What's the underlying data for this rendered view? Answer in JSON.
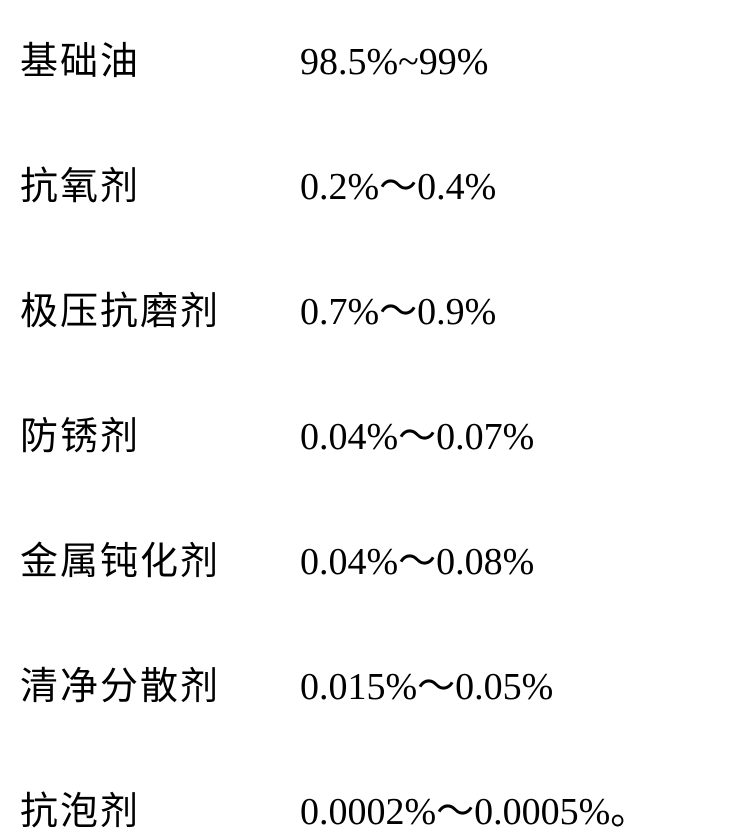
{
  "composition": {
    "rows": [
      {
        "label": "基础油",
        "value": "98.5%~99%"
      },
      {
        "label": "抗氧剂",
        "value": "0.2%～0.4%"
      },
      {
        "label": "极压抗磨剂",
        "value": "0.7%～0.9%"
      },
      {
        "label": "防锈剂",
        "value": "0.04%～0.07%"
      },
      {
        "label": "金属钝化剂",
        "value": "0.04%～0.08%"
      },
      {
        "label": "清净分散剂",
        "value": "0.015%～0.05%"
      },
      {
        "label": "抗泡剂",
        "value": "0.0002%～0.0005%。"
      }
    ]
  },
  "styling": {
    "background_color": "#ffffff",
    "text_color": "#000000",
    "label_fontsize": 38,
    "value_fontsize": 38,
    "row_gap": 70,
    "label_width": 280,
    "font_family_label": "SimSun",
    "font_family_value": "Times New Roman"
  }
}
